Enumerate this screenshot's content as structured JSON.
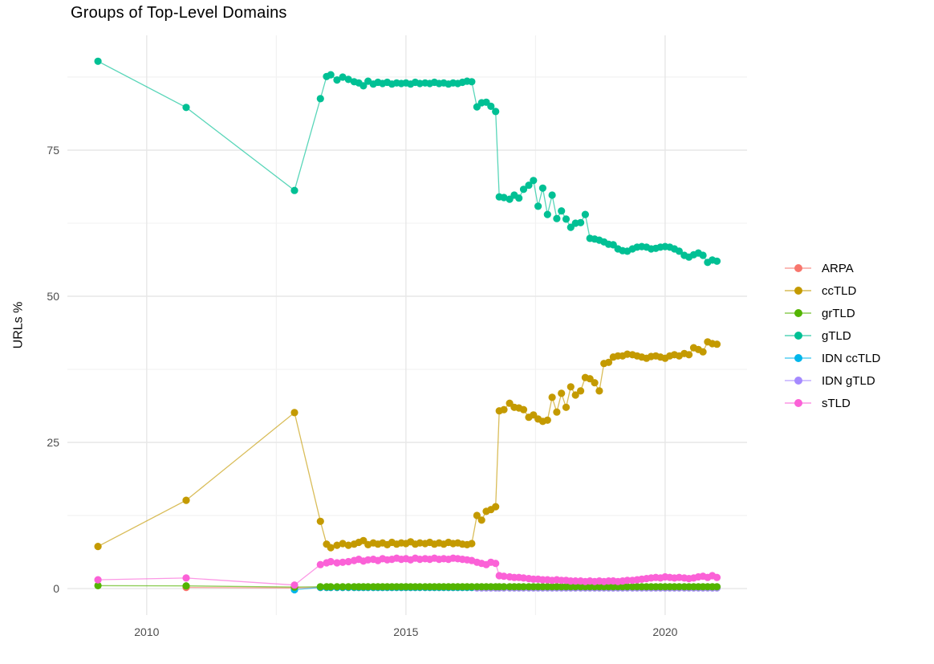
{
  "chart_data": {
    "type": "line",
    "title": "Groups of Top-Level Domains",
    "xlabel": "",
    "ylabel": "URLs %",
    "grid": true,
    "legend_position": "right",
    "x_range": [
      2008.47,
      2021.58
    ],
    "y_range": [
      -4.53,
      94.64
    ],
    "x_ticks": {
      "major": [
        2010,
        2015,
        2020
      ],
      "minor": [
        2012.5,
        2017.5
      ],
      "labels": [
        "2010",
        "2015",
        "2020"
      ]
    },
    "y_ticks": {
      "major": [
        0,
        25,
        50,
        75
      ],
      "minor": [
        12.5,
        37.5,
        62.5,
        87.5
      ],
      "labels": [
        "0",
        "25",
        "50",
        "75"
      ]
    },
    "x": [
      2009.06,
      2010.76,
      2012.85,
      2013.35,
      2013.47,
      2013.55,
      2013.67,
      2013.78,
      2013.89,
      2014.0,
      2014.09,
      2014.18,
      2014.27,
      2014.37,
      2014.46,
      2014.55,
      2014.64,
      2014.73,
      2014.82,
      2014.91,
      2015.0,
      2015.09,
      2015.18,
      2015.27,
      2015.37,
      2015.46,
      2015.55,
      2015.64,
      2015.73,
      2015.82,
      2015.91,
      2016.0,
      2016.09,
      2016.18,
      2016.27,
      2016.37,
      2016.46,
      2016.55,
      2016.64,
      2016.73,
      2016.8,
      2016.89,
      2017.0,
      2017.09,
      2017.18,
      2017.27,
      2017.37,
      2017.46,
      2017.55,
      2017.64,
      2017.73,
      2017.82,
      2017.91,
      2018.0,
      2018.09,
      2018.18,
      2018.27,
      2018.37,
      2018.46,
      2018.55,
      2018.64,
      2018.73,
      2018.82,
      2018.91,
      2019.0,
      2019.09,
      2019.18,
      2019.27,
      2019.37,
      2019.46,
      2019.55,
      2019.64,
      2019.73,
      2019.82,
      2019.91,
      2020.0,
      2020.09,
      2020.18,
      2020.27,
      2020.37,
      2020.46,
      2020.55,
      2020.64,
      2020.73,
      2020.82,
      2020.91,
      2021.0
    ],
    "series": [
      {
        "name": "ARPA",
        "color": "#F8766D",
        "values": [
          null,
          0.2,
          0.1,
          0.2,
          0.2,
          0.2,
          0.2,
          0.2,
          0.2,
          0.2,
          0.2,
          0.2,
          0.2,
          0.2,
          0.2,
          0.2,
          0.2,
          0.2,
          0.2,
          0.2,
          0.2,
          0.2,
          0.2,
          0.2,
          0.2,
          0.2,
          0.2,
          0.2,
          0.2,
          0.2,
          0.2,
          0.2,
          0.2,
          0.2,
          0.2,
          0.2,
          0.2,
          0.2,
          0.2,
          0.2,
          0.2,
          0.2,
          0.2,
          0.2,
          0.2,
          0.2,
          0.2,
          0.2,
          0.2,
          0.2,
          0.2,
          0.2,
          0.2,
          0.2,
          0.2,
          0.2,
          0.2,
          0.2,
          0.2,
          0.2,
          0.2,
          0.2,
          0.2,
          0.2,
          0.2,
          0.2,
          0.2,
          0.2,
          0.2,
          0.2,
          0.2,
          0.2,
          0.2,
          0.2,
          0.2,
          0.2,
          0.2,
          0.2,
          0.2,
          0.2,
          0.2,
          0.2,
          0.2,
          0.2,
          0.2,
          0.2,
          0.2
        ]
      },
      {
        "name": "ccTLD",
        "color": "#C49A00",
        "values": [
          7.2,
          15.1,
          30.1,
          11.5,
          7.6,
          7.0,
          7.4,
          7.7,
          7.4,
          7.6,
          7.9,
          8.2,
          7.5,
          7.8,
          7.6,
          7.8,
          7.5,
          7.9,
          7.6,
          7.8,
          7.7,
          8.0,
          7.6,
          7.8,
          7.7,
          7.9,
          7.6,
          7.8,
          7.6,
          7.9,
          7.7,
          7.8,
          7.6,
          7.5,
          7.7,
          12.5,
          11.7,
          13.2,
          13.5,
          14.0,
          30.4,
          30.6,
          31.7,
          31.0,
          30.9,
          30.6,
          29.3,
          29.7,
          29.0,
          28.6,
          28.8,
          32.7,
          30.2,
          33.4,
          31.0,
          34.5,
          33.1,
          33.8,
          36.1,
          35.9,
          35.2,
          33.8,
          38.5,
          38.7,
          39.6,
          39.8,
          39.8,
          40.1,
          40.0,
          39.8,
          39.6,
          39.4,
          39.7,
          39.8,
          39.6,
          39.4,
          39.8,
          40.0,
          39.8,
          40.2,
          40.0,
          41.2,
          40.9,
          40.5,
          42.2,
          41.9,
          41.8
        ]
      },
      {
        "name": "grTLD",
        "color": "#53B400",
        "values": [
          0.5,
          0.45,
          0.25,
          0.3,
          0.3,
          0.3,
          0.3,
          0.3,
          0.3,
          0.3,
          0.3,
          0.3,
          0.3,
          0.3,
          0.3,
          0.3,
          0.3,
          0.3,
          0.3,
          0.3,
          0.3,
          0.3,
          0.3,
          0.3,
          0.3,
          0.3,
          0.3,
          0.3,
          0.3,
          0.3,
          0.3,
          0.3,
          0.3,
          0.3,
          0.3,
          0.3,
          0.3,
          0.3,
          0.3,
          0.3,
          0.3,
          0.3,
          0.3,
          0.3,
          0.3,
          0.3,
          0.3,
          0.3,
          0.3,
          0.3,
          0.3,
          0.3,
          0.3,
          0.3,
          0.3,
          0.3,
          0.3,
          0.3,
          0.3,
          0.3,
          0.3,
          0.3,
          0.3,
          0.3,
          0.3,
          0.3,
          0.3,
          0.3,
          0.3,
          0.3,
          0.3,
          0.3,
          0.3,
          0.3,
          0.3,
          0.3,
          0.3,
          0.3,
          0.3,
          0.3,
          0.3,
          0.3,
          0.3,
          0.3,
          0.3,
          0.3,
          0.3
        ]
      },
      {
        "name": "gTLD",
        "color": "#00C094",
        "values": [
          90.2,
          82.3,
          68.1,
          83.8,
          87.6,
          87.9,
          87.0,
          87.5,
          87.1,
          86.7,
          86.5,
          86.0,
          86.8,
          86.3,
          86.6,
          86.4,
          86.6,
          86.3,
          86.5,
          86.4,
          86.5,
          86.3,
          86.6,
          86.4,
          86.5,
          86.4,
          86.6,
          86.4,
          86.5,
          86.3,
          86.5,
          86.4,
          86.6,
          86.8,
          86.7,
          82.4,
          83.1,
          83.2,
          82.5,
          81.6,
          67.0,
          66.9,
          66.6,
          67.3,
          66.8,
          68.3,
          69.0,
          69.8,
          65.4,
          68.5,
          64.0,
          67.3,
          63.3,
          64.6,
          63.2,
          61.8,
          62.5,
          62.6,
          64.0,
          59.9,
          59.8,
          59.6,
          59.3,
          58.9,
          58.8,
          58.1,
          57.8,
          57.7,
          58.1,
          58.4,
          58.5,
          58.4,
          58.1,
          58.2,
          58.4,
          58.5,
          58.4,
          58.1,
          57.7,
          57.0,
          56.7,
          57.1,
          57.4,
          57.0,
          55.8,
          56.2,
          56.0
        ]
      },
      {
        "name": "IDN ccTLD",
        "color": "#00B6EB",
        "values": [
          null,
          null,
          -0.2,
          0.2,
          0.2,
          0.2,
          0.2,
          0.2,
          0.2,
          0.2,
          0.2,
          0.2,
          0.2,
          0.2,
          0.2,
          0.2,
          0.2,
          0.2,
          0.2,
          0.2,
          0.2,
          0.2,
          0.2,
          0.2,
          0.2,
          0.2,
          0.2,
          0.2,
          0.2,
          0.2,
          0.2,
          0.2,
          0.2,
          0.2,
          0.2,
          0.2,
          0.2,
          0.2,
          0.2,
          0.2,
          0.2,
          0.2,
          0.2,
          0.2,
          0.2,
          0.2,
          0.2,
          0.2,
          0.2,
          0.2,
          0.2,
          0.2,
          0.2,
          0.2,
          0.2,
          0.2,
          0.2,
          0.2,
          0.2,
          0.2,
          0.2,
          0.2,
          0.2,
          0.2,
          0.2,
          0.2,
          0.2,
          0.2,
          0.2,
          0.2,
          0.2,
          0.2,
          0.2,
          0.2,
          0.2,
          0.2,
          0.2,
          0.2,
          0.2,
          0.2,
          0.2,
          0.2,
          0.2,
          0.2,
          0.2,
          0.2,
          0.2
        ]
      },
      {
        "name": "IDN gTLD",
        "color": "#A58AFF",
        "values": [
          null,
          null,
          null,
          null,
          null,
          null,
          null,
          null,
          null,
          null,
          null,
          null,
          null,
          null,
          null,
          null,
          null,
          null,
          null,
          null,
          null,
          null,
          null,
          null,
          null,
          null,
          null,
          null,
          null,
          null,
          null,
          null,
          null,
          null,
          null,
          0.1,
          0.1,
          0.1,
          0.1,
          0.1,
          0.1,
          0.1,
          0.1,
          0.1,
          0.1,
          0.1,
          0.1,
          0.1,
          0.1,
          0.1,
          0.1,
          0.1,
          0.1,
          0.1,
          0.1,
          0.1,
          0.1,
          0.1,
          0.1,
          0.1,
          0.1,
          0.1,
          0.1,
          0.1,
          0.1,
          0.1,
          0.1,
          0.1,
          0.1,
          0.1,
          0.1,
          0.1,
          0.1,
          0.1,
          0.1,
          0.1,
          0.1,
          0.1,
          0.1,
          0.1,
          0.1,
          0.1,
          0.1,
          0.1,
          0.1,
          0.1,
          0.1
        ]
      },
      {
        "name": "sTLD",
        "color": "#FB61D7",
        "values": [
          1.5,
          1.8,
          0.6,
          4.1,
          4.4,
          4.6,
          4.4,
          4.5,
          4.6,
          4.8,
          5.0,
          4.7,
          4.9,
          5.0,
          4.8,
          5.1,
          4.9,
          5.0,
          5.2,
          5.0,
          5.1,
          4.9,
          5.2,
          5.0,
          5.1,
          5.0,
          5.2,
          5.0,
          5.1,
          5.0,
          5.2,
          5.1,
          5.0,
          4.9,
          4.8,
          4.5,
          4.3,
          4.1,
          4.5,
          4.3,
          2.2,
          2.1,
          2.0,
          1.9,
          1.9,
          1.8,
          1.7,
          1.6,
          1.6,
          1.5,
          1.5,
          1.4,
          1.5,
          1.4,
          1.4,
          1.3,
          1.3,
          1.3,
          1.2,
          1.3,
          1.2,
          1.3,
          1.2,
          1.3,
          1.3,
          1.2,
          1.3,
          1.4,
          1.4,
          1.5,
          1.6,
          1.7,
          1.8,
          1.9,
          1.8,
          2.0,
          1.9,
          1.8,
          1.9,
          1.8,
          1.7,
          1.8,
          2.0,
          2.1,
          1.9,
          2.2,
          1.9
        ]
      }
    ],
    "draw_order": [
      "ARPA",
      "IDN ccTLD",
      "IDN gTLD",
      "grTLD",
      "ccTLD",
      "gTLD",
      "sTLD"
    ]
  },
  "style": {
    "grid_major_color": "#e7e7e7",
    "grid_minor_color": "#f1f1f1",
    "tick_label_color": "#4d4d4d",
    "background": "#ffffff"
  }
}
